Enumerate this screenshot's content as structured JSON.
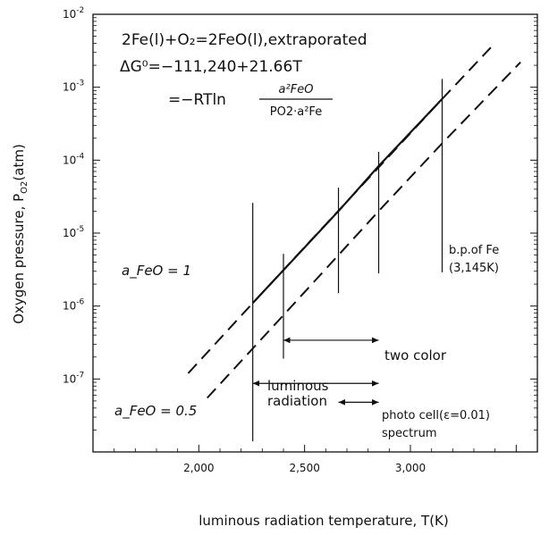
{
  "chart_data": {
    "type": "line",
    "xlabel": "luminous radiation temperature, T(K)",
    "ylabel": "Oxygen pressure, P",
    "ylabel_sub": "O2",
    "ylabel_unit": "(atm)",
    "xlim": [
      1500,
      3600
    ],
    "ylim": [
      1e-08,
      0.01
    ],
    "yscale": "log",
    "xticks": [
      2000,
      2500,
      3000
    ],
    "xtick_labels": [
      "2,000",
      "2,500",
      "3,000"
    ],
    "yticks": [
      {
        "value": 0.01,
        "base": "10",
        "exp": "-2"
      },
      {
        "value": 0.001,
        "base": "10",
        "exp": "-3"
      },
      {
        "value": 0.0001,
        "base": "10",
        "exp": "-4"
      },
      {
        "value": 1e-05,
        "base": "10",
        "exp": "-5"
      },
      {
        "value": 1e-06,
        "base": "10",
        "exp": "-6"
      },
      {
        "value": 1e-07,
        "base": "10",
        "exp": "-7"
      }
    ],
    "grid": false,
    "series": [
      {
        "label": "a_FeO = 1",
        "style": "solid",
        "x": [
          2255,
          2400,
          2660,
          2850,
          3150
        ],
        "y": [
          1.1e-06,
          3.1e-06,
          2e-05,
          8.3e-05,
          0.00069
        ]
      },
      {
        "label": "a_FeO = 1 (extrapolated)",
        "style": "dashed",
        "x": [
          1950,
          2255,
          3150,
          3380
        ],
        "y": [
          1.2e-07,
          1.1e-06,
          0.00069,
          0.0035
        ]
      },
      {
        "label": "a_FeO = 0.5",
        "style": "dashed",
        "x": [
          2040,
          2400,
          2850,
          3150,
          3520
        ],
        "y": [
          5.5e-08,
          7.5e-07,
          2e-05,
          0.00017,
          0.0022
        ]
      }
    ],
    "vertical_markers": [
      {
        "x": 2255,
        "y_range": [
          1.4e-08,
          2.6e-05
        ]
      },
      {
        "x": 2400,
        "y_range": [
          1.9e-07,
          5.2e-06
        ]
      },
      {
        "x": 2660,
        "y_range": [
          1.5e-06,
          4.2e-05
        ]
      },
      {
        "x": 2850,
        "y_range": [
          2.8e-06,
          0.00013
        ]
      },
      {
        "x": 3150,
        "y_range": [
          2.9e-06,
          0.0013
        ]
      }
    ],
    "range_arrows": [
      {
        "name": "two color",
        "label": "two color",
        "x_range": [
          2400,
          2850
        ],
        "y": 3.4e-07
      },
      {
        "name": "luminous radiation",
        "label_lines": [
          "luminous",
          "radiation"
        ],
        "x_range": [
          2255,
          2850
        ],
        "y": 8.7e-08
      },
      {
        "name": "spectrum",
        "label": "spectrum",
        "x_range": [
          2660,
          2850
        ],
        "y": 4.8e-08
      }
    ],
    "annotations": {
      "reaction": "2Fe(l)+O₂=2FeO(l),extraporated",
      "dg": "ΔG⁰=−111,240+21.66T",
      "eq_lhs": "=−RTln",
      "frac_num": "a²FeO",
      "frac_den": "PO2·a²Fe",
      "photo_cell": "photo cell(ε=0.01)",
      "bp_line1": "b.p.of Fe",
      "bp_line2": "(3,145K)",
      "afeo1": "a_FeO = 1",
      "afeo05": "a_FeO = 0.5"
    }
  }
}
